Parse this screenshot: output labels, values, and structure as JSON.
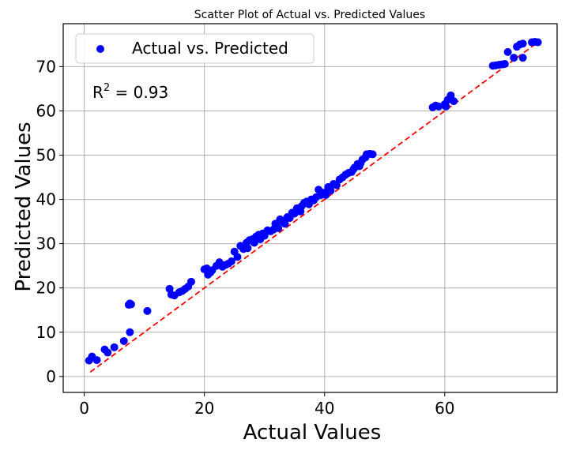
{
  "chart_data": {
    "type": "scatter",
    "title": "Scatter Plot of Actual vs. Predicted Values",
    "xlabel": "Actual Values",
    "ylabel": "Predicted Values",
    "xlim": [
      -3.5,
      78.7
    ],
    "ylim": [
      -3.6,
      79.7
    ],
    "xticks": [
      0,
      20,
      40,
      60
    ],
    "yticks": [
      0,
      10,
      20,
      30,
      40,
      50,
      60,
      70
    ],
    "grid": true,
    "legend": {
      "label": "Actual vs. Predicted",
      "placement": "top-left"
    },
    "annotation": {
      "prefix": "R",
      "sup": "2",
      "suffix": " = 0.93"
    },
    "colors": {
      "points": "#0000ff",
      "reference_line": "#ff0000",
      "grid": "#b0b0b0"
    },
    "reference_line": {
      "label": "",
      "x": [
        1,
        75
      ],
      "y": [
        1,
        75
      ],
      "style": "dashed"
    },
    "points": [
      [
        0.8,
        3.6
      ],
      [
        1.3,
        4.5
      ],
      [
        2.1,
        3.7
      ],
      [
        3.4,
        6.1
      ],
      [
        3.9,
        5.4
      ],
      [
        5.0,
        6.6
      ],
      [
        6.6,
        8.0
      ],
      [
        7.6,
        10.0
      ],
      [
        7.4,
        16.2
      ],
      [
        7.6,
        16.5
      ],
      [
        7.8,
        16.3
      ],
      [
        10.5,
        14.8
      ],
      [
        14.2,
        19.8
      ],
      [
        14.5,
        18.5
      ],
      [
        15,
        18.3
      ],
      [
        15.8,
        19
      ],
      [
        16.3,
        19.3
      ],
      [
        16.8,
        19.8
      ],
      [
        17.3,
        20.3
      ],
      [
        17.8,
        21.4
      ],
      [
        20.0,
        24.2
      ],
      [
        20.4,
        24.4
      ],
      [
        20.6,
        23.0
      ],
      [
        21,
        23.5
      ],
      [
        21.3,
        24
      ],
      [
        22,
        25
      ],
      [
        22.5,
        25.8
      ],
      [
        23,
        24.8
      ],
      [
        23.5,
        25.2
      ],
      [
        24,
        25.5
      ],
      [
        24.5,
        26
      ],
      [
        25,
        28.2
      ],
      [
        25.5,
        27
      ],
      [
        26,
        29.5
      ],
      [
        26.5,
        28.8
      ],
      [
        27,
        30.2
      ],
      [
        27.2,
        29
      ],
      [
        27.5,
        30.8
      ],
      [
        28,
        31
      ],
      [
        28.3,
        30.2
      ],
      [
        28.6,
        31.6
      ],
      [
        29,
        32
      ],
      [
        29.3,
        31
      ],
      [
        29.7,
        32.3
      ],
      [
        30,
        31.8
      ],
      [
        30.5,
        33
      ],
      [
        31,
        32.8
      ],
      [
        31.5,
        33.2
      ],
      [
        31.8,
        34.5
      ],
      [
        32,
        34
      ],
      [
        32.3,
        33.5
      ],
      [
        32.6,
        35.5
      ],
      [
        33,
        35
      ],
      [
        33.4,
        34.5
      ],
      [
        33.8,
        36
      ],
      [
        34.2,
        35.8
      ],
      [
        34.6,
        37
      ],
      [
        35,
        36.8
      ],
      [
        35.4,
        38
      ],
      [
        35.8,
        37.5
      ],
      [
        36,
        37.3
      ],
      [
        36.2,
        38.5
      ],
      [
        36.6,
        39.2
      ],
      [
        37,
        39.5
      ],
      [
        37.4,
        38.9
      ],
      [
        37.8,
        40
      ],
      [
        38.2,
        39.8
      ],
      [
        38.6,
        40.5
      ],
      [
        39,
        42.2
      ],
      [
        39.4,
        41
      ],
      [
        39.8,
        41.5
      ],
      [
        40.2,
        41
      ],
      [
        40.6,
        42.8
      ],
      [
        41,
        42
      ],
      [
        41.5,
        43.5
      ],
      [
        42,
        43.2
      ],
      [
        42.5,
        44.5
      ],
      [
        43,
        45
      ],
      [
        43.5,
        45.6
      ],
      [
        44,
        46
      ],
      [
        44.5,
        46.2
      ],
      [
        44.8,
        46.8
      ],
      [
        45,
        47.2
      ],
      [
        45.5,
        48
      ],
      [
        45.8,
        47.5
      ],
      [
        46,
        48.2
      ],
      [
        46.3,
        49
      ],
      [
        46.8,
        49.5
      ],
      [
        47,
        50.2
      ],
      [
        47.5,
        50.3
      ],
      [
        48,
        50.2
      ],
      [
        58,
        60.8
      ],
      [
        58.5,
        61.2
      ],
      [
        59,
        61
      ],
      [
        60,
        61.5
      ],
      [
        60.2,
        61
      ],
      [
        60.5,
        62.5
      ],
      [
        61,
        63.5
      ],
      [
        61.5,
        62.2
      ],
      [
        68,
        70.2
      ],
      [
        68.5,
        70.3
      ],
      [
        69,
        70.4
      ],
      [
        69.5,
        70.5
      ],
      [
        70,
        70.6
      ],
      [
        70.5,
        73.3
      ],
      [
        71.5,
        72
      ],
      [
        72,
        74.5
      ],
      [
        72.5,
        75
      ],
      [
        73,
        72
      ],
      [
        73,
        75.2
      ],
      [
        74.5,
        75.5
      ],
      [
        75,
        75.6
      ],
      [
        75.5,
        75.5
      ]
    ]
  }
}
